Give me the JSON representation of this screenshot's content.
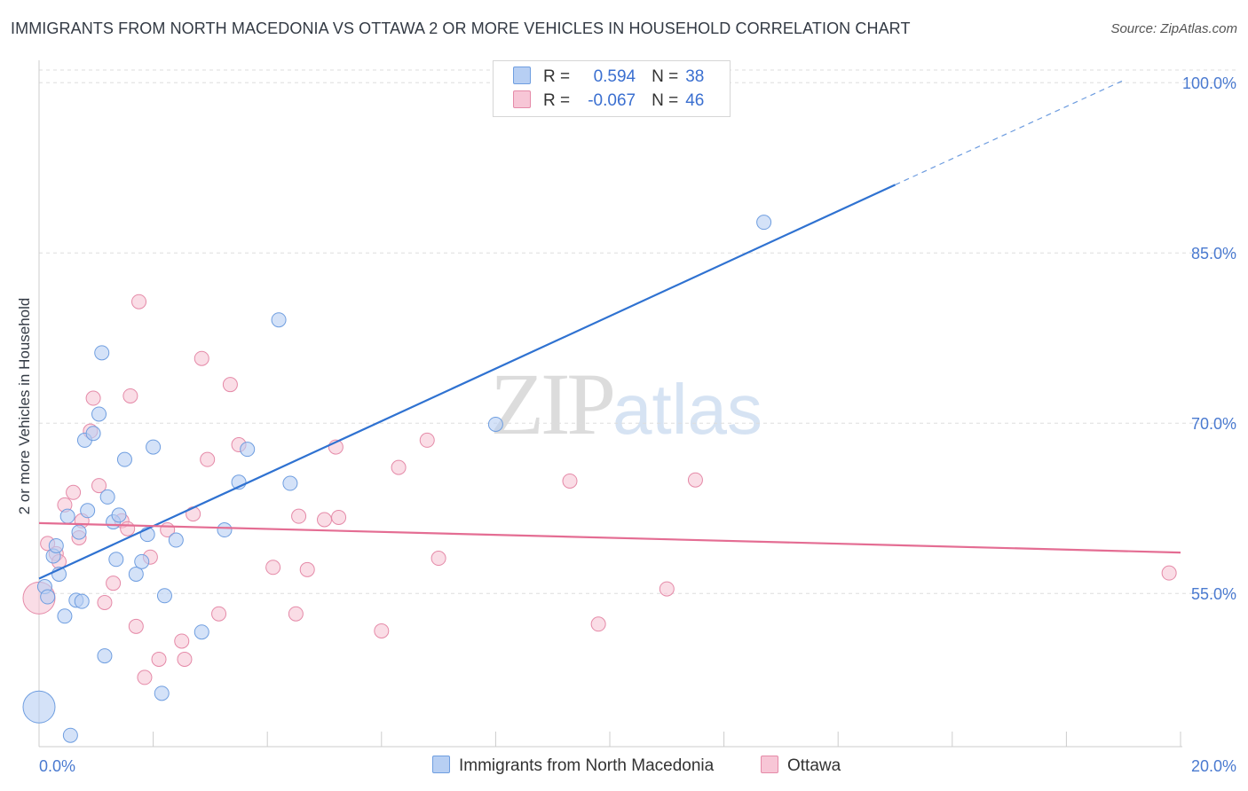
{
  "header": {
    "title": "IMMIGRANTS FROM NORTH MACEDONIA VS OTTAWA 2 OR MORE VEHICLES IN HOUSEHOLD CORRELATION CHART",
    "source": "Source: ZipAtlas.com"
  },
  "watermark": {
    "zip": "ZIP",
    "atlas": "atlas"
  },
  "legend": {
    "r_label": "R =",
    "n_label": "N =",
    "rows": [
      {
        "r": "0.594",
        "n": "38"
      },
      {
        "r": "-0.067",
        "n": "46"
      }
    ]
  },
  "colors": {
    "series1_fill": "#b7cff3",
    "series1_stroke": "#6f9ee0",
    "series1_line": "#2f72d1",
    "series2_fill": "#f7c6d6",
    "series2_stroke": "#e58aa8",
    "series2_line": "#e46d93",
    "tick": "#4a7ad0",
    "grid": "#dddddd"
  },
  "chart_data": {
    "type": "scatter",
    "title": "IMMIGRANTS FROM NORTH MACEDONIA VS OTTAWA 2 OR MORE VEHICLES IN HOUSEHOLD CORRELATION CHART",
    "xlabel": "",
    "ylabel": "2 or more Vehicles in Household",
    "xlim": [
      0,
      20
    ],
    "ylim": [
      41.5,
      101.5
    ],
    "x_tick_labels": [
      "0.0%",
      "20.0%"
    ],
    "y_ticks": [
      55,
      70,
      85,
      100
    ],
    "y_tick_labels": [
      "55.0%",
      "70.0%",
      "85.0%",
      "100.0%"
    ],
    "grid": true,
    "legend_position": "top-center",
    "series": [
      {
        "name": "Immigrants from North Macedonia",
        "r": 0.594,
        "n": 38,
        "trend": {
          "x": [
            0,
            15
          ],
          "y": [
            56.3,
            91.0
          ],
          "dashed_to": {
            "x": 19.0,
            "y": 100.2
          }
        },
        "points": [
          {
            "x": 0.0,
            "y": 45.0,
            "big": true
          },
          {
            "x": 0.1,
            "y": 55.6
          },
          {
            "x": 0.15,
            "y": 54.7
          },
          {
            "x": 0.25,
            "y": 58.3
          },
          {
            "x": 0.3,
            "y": 59.2
          },
          {
            "x": 0.35,
            "y": 56.7
          },
          {
            "x": 0.45,
            "y": 53.0
          },
          {
            "x": 0.5,
            "y": 61.8
          },
          {
            "x": 0.55,
            "y": 42.5
          },
          {
            "x": 0.65,
            "y": 54.4
          },
          {
            "x": 0.7,
            "y": 60.4
          },
          {
            "x": 0.75,
            "y": 54.3
          },
          {
            "x": 0.8,
            "y": 68.5
          },
          {
            "x": 0.85,
            "y": 62.3
          },
          {
            "x": 0.95,
            "y": 69.1
          },
          {
            "x": 1.05,
            "y": 70.8
          },
          {
            "x": 1.1,
            "y": 76.2
          },
          {
            "x": 1.15,
            "y": 49.5
          },
          {
            "x": 1.2,
            "y": 63.5
          },
          {
            "x": 1.3,
            "y": 61.3
          },
          {
            "x": 1.35,
            "y": 58.0
          },
          {
            "x": 1.4,
            "y": 61.9
          },
          {
            "x": 1.5,
            "y": 66.8
          },
          {
            "x": 1.7,
            "y": 56.7
          },
          {
            "x": 1.8,
            "y": 57.8
          },
          {
            "x": 1.9,
            "y": 60.2
          },
          {
            "x": 2.0,
            "y": 67.9
          },
          {
            "x": 2.15,
            "y": 46.2
          },
          {
            "x": 2.2,
            "y": 54.8
          },
          {
            "x": 2.4,
            "y": 59.7
          },
          {
            "x": 2.85,
            "y": 51.6
          },
          {
            "x": 3.25,
            "y": 60.6
          },
          {
            "x": 3.5,
            "y": 64.8
          },
          {
            "x": 3.65,
            "y": 67.7
          },
          {
            "x": 4.2,
            "y": 79.1
          },
          {
            "x": 4.4,
            "y": 64.7
          },
          {
            "x": 8.0,
            "y": 69.9
          },
          {
            "x": 12.7,
            "y": 87.7
          }
        ]
      },
      {
        "name": "Ottawa",
        "r": -0.067,
        "n": 46,
        "trend": {
          "x": [
            0,
            20
          ],
          "y": [
            61.2,
            58.6
          ]
        },
        "points": [
          {
            "x": 0.0,
            "y": 54.6,
            "big": true
          },
          {
            "x": 0.15,
            "y": 59.4
          },
          {
            "x": 0.3,
            "y": 58.5
          },
          {
            "x": 0.35,
            "y": 57.8
          },
          {
            "x": 0.45,
            "y": 62.8
          },
          {
            "x": 0.6,
            "y": 63.9
          },
          {
            "x": 0.7,
            "y": 59.9
          },
          {
            "x": 0.75,
            "y": 61.4
          },
          {
            "x": 0.9,
            "y": 69.3
          },
          {
            "x": 0.95,
            "y": 72.2
          },
          {
            "x": 1.05,
            "y": 64.5
          },
          {
            "x": 1.15,
            "y": 54.2
          },
          {
            "x": 1.3,
            "y": 55.9
          },
          {
            "x": 1.45,
            "y": 61.4
          },
          {
            "x": 1.55,
            "y": 60.7
          },
          {
            "x": 1.6,
            "y": 72.4
          },
          {
            "x": 1.7,
            "y": 52.1
          },
          {
            "x": 1.75,
            "y": 80.7
          },
          {
            "x": 1.85,
            "y": 47.6
          },
          {
            "x": 1.95,
            "y": 58.2
          },
          {
            "x": 2.1,
            "y": 49.2
          },
          {
            "x": 2.25,
            "y": 60.6
          },
          {
            "x": 2.5,
            "y": 50.8
          },
          {
            "x": 2.55,
            "y": 49.2
          },
          {
            "x": 2.7,
            "y": 62.0
          },
          {
            "x": 2.85,
            "y": 75.7
          },
          {
            "x": 2.95,
            "y": 66.8
          },
          {
            "x": 3.15,
            "y": 53.2
          },
          {
            "x": 3.35,
            "y": 73.4
          },
          {
            "x": 3.5,
            "y": 68.1
          },
          {
            "x": 4.1,
            "y": 57.3
          },
          {
            "x": 4.5,
            "y": 53.2
          },
          {
            "x": 4.55,
            "y": 61.8
          },
          {
            "x": 4.7,
            "y": 57.1
          },
          {
            "x": 5.0,
            "y": 61.5
          },
          {
            "x": 5.2,
            "y": 67.9
          },
          {
            "x": 5.25,
            "y": 61.7
          },
          {
            "x": 6.0,
            "y": 51.7
          },
          {
            "x": 6.3,
            "y": 66.1
          },
          {
            "x": 6.8,
            "y": 68.5
          },
          {
            "x": 7.0,
            "y": 58.1
          },
          {
            "x": 9.3,
            "y": 64.9
          },
          {
            "x": 9.8,
            "y": 52.3
          },
          {
            "x": 11.0,
            "y": 55.4
          },
          {
            "x": 11.5,
            "y": 65.0
          },
          {
            "x": 19.8,
            "y": 56.8
          }
        ]
      }
    ]
  }
}
